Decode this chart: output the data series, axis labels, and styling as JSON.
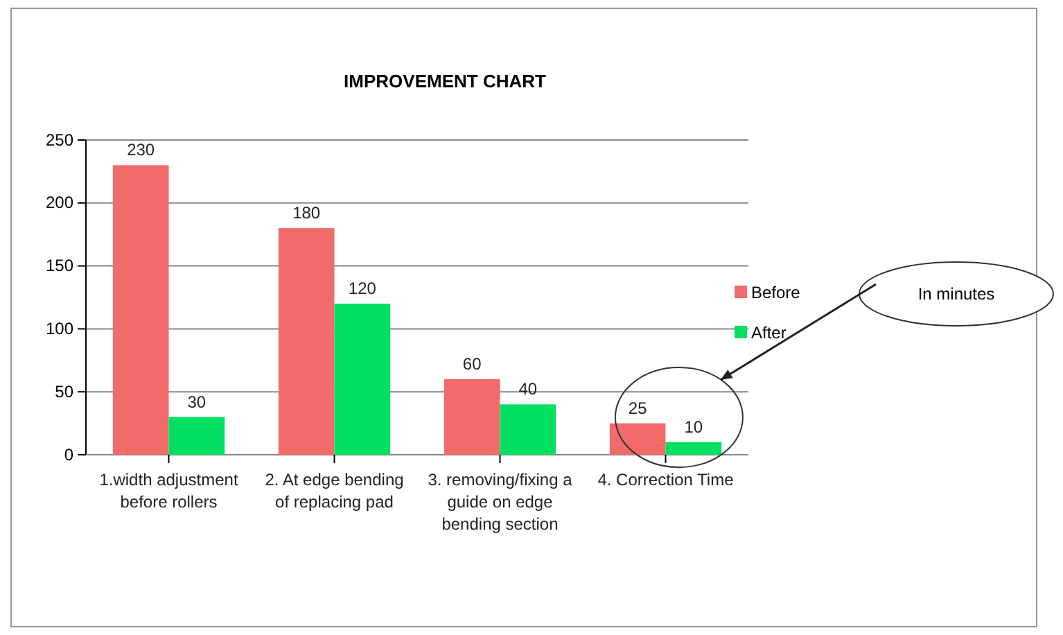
{
  "chart_data": {
    "type": "bar",
    "title": "IMPROVEMENT CHART",
    "categories": [
      "1.width adjustment before rollers",
      "2. At edge bending of replacing pad",
      "3. removing/fixing a guide on edge bending section",
      "4. Correction Time"
    ],
    "series": [
      {
        "name": "Before",
        "color": "#f26b6b",
        "values": [
          230,
          180,
          60,
          25
        ]
      },
      {
        "name": "After",
        "color": "#00e060",
        "values": [
          30,
          120,
          40,
          10
        ]
      }
    ],
    "ylim": [
      0,
      250
    ],
    "yticks": [
      0,
      50,
      100,
      150,
      200,
      250
    ],
    "grid": "y",
    "legend": "right",
    "data_labels": true,
    "annotations": [
      "In minutes"
    ]
  }
}
